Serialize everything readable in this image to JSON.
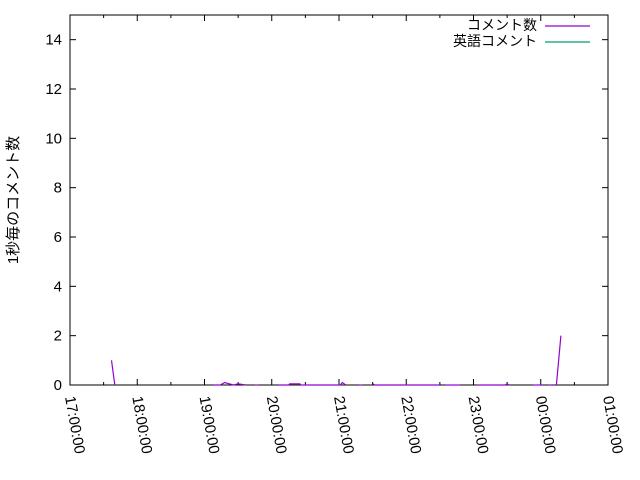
{
  "chart_data": {
    "type": "line",
    "title": "",
    "xlabel": "",
    "ylabel": "1秒毎のコメント数",
    "xlim": [
      "17:00:00",
      "01:00:00"
    ],
    "ylim": [
      0,
      15
    ],
    "x_ticks": [
      "17:00:00",
      "18:00:00",
      "19:00:00",
      "20:00:00",
      "21:00:00",
      "22:00:00",
      "23:00:00",
      "00:00:00",
      "01:00:00"
    ],
    "y_ticks": [
      "0",
      "2",
      "4",
      "6",
      "8",
      "10",
      "12",
      "14"
    ],
    "y_tick_values": [
      0,
      2,
      4,
      6,
      8,
      10,
      12,
      14
    ],
    "grid": false,
    "legend_position": "top-right",
    "series": [
      {
        "name": "コメント数",
        "color": "#9400d3",
        "segments": [
          [
            [
              "17:37",
              1
            ],
            [
              "17:40",
              0
            ]
          ],
          [
            [
              "19:08",
              0
            ],
            [
              "19:14",
              0
            ],
            [
              "19:18",
              0.1
            ],
            [
              "19:22",
              0.05
            ],
            [
              "19:26",
              0
            ],
            [
              "19:30",
              0.05
            ],
            [
              "19:37",
              0
            ]
          ],
          [
            [
              "19:45",
              0
            ],
            [
              "19:48",
              0
            ]
          ],
          [
            [
              "20:06",
              0
            ],
            [
              "20:15",
              0
            ],
            [
              "20:16",
              0.05
            ],
            [
              "20:25",
              0.05
            ],
            [
              "20:26",
              0
            ],
            [
              "21:01",
              0
            ],
            [
              "21:03",
              0.1
            ],
            [
              "21:06",
              0
            ]
          ],
          [
            [
              "21:18",
              0
            ],
            [
              "21:21",
              0
            ]
          ],
          [
            [
              "21:30",
              0.05
            ],
            [
              "21:32",
              0
            ],
            [
              "21:54",
              0
            ]
          ],
          [
            [
              "21:55",
              0
            ],
            [
              "22:30",
              0
            ]
          ],
          [
            [
              "22:35",
              0
            ],
            [
              "22:48",
              0
            ]
          ],
          [
            [
              "23:03",
              0
            ],
            [
              "23:28",
              0
            ],
            [
              "23:30",
              0.05
            ],
            [
              "23:32",
              0
            ]
          ],
          [
            [
              "23:53",
              0
            ],
            [
              "00:02",
              0
            ]
          ],
          [
            [
              "00:07",
              0
            ],
            [
              "00:11",
              0
            ]
          ],
          [
            [
              "00:14",
              0
            ],
            [
              "00:18",
              2
            ]
          ]
        ]
      },
      {
        "name": "英語コメント",
        "color": "#009e73",
        "segments": [
          [
            [
              "00:00",
              0
            ],
            [
              "00:02",
              0
            ]
          ],
          [
            [
              "00:09",
              0
            ],
            [
              "00:11",
              0
            ]
          ]
        ]
      }
    ]
  }
}
